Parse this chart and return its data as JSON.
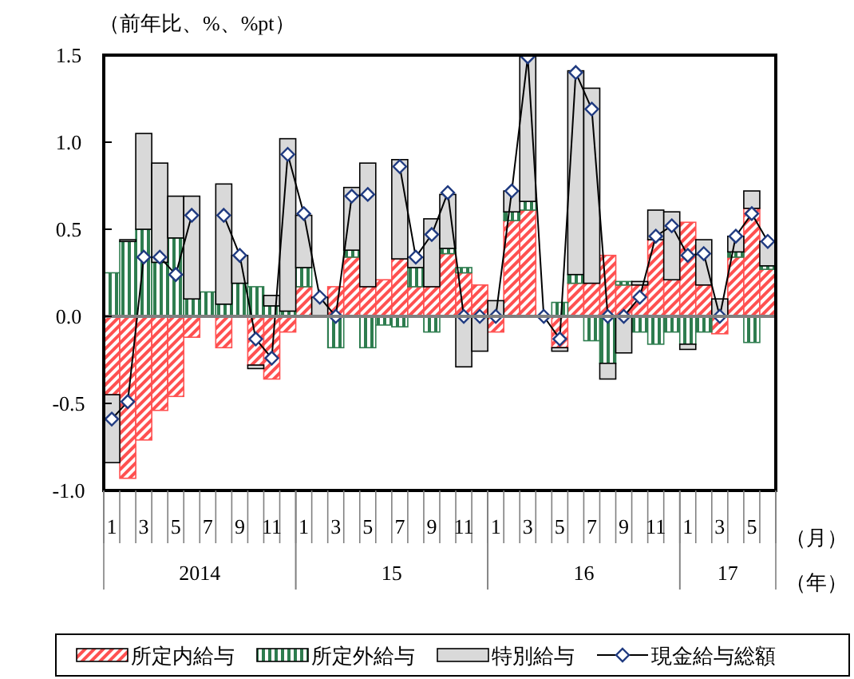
{
  "chart_data": {
    "type": "bar",
    "stacked": true,
    "ylabel": "（前年比、%、%pt）",
    "xlabel": "（月）",
    "annotations": [
      "2014",
      "15",
      "16",
      "17",
      "（年）"
    ],
    "xlim": [
      "2014-01",
      "2017-06"
    ],
    "x": [
      "2014-01",
      "2014-02",
      "2014-03",
      "2014-04",
      "2014-05",
      "2014-06",
      "2014-07",
      "2014-08",
      "2014-09",
      "2014-10",
      "2014-11",
      "2014-12",
      "2015-01",
      "2015-02",
      "2015-03",
      "2015-04",
      "2015-05",
      "2015-06",
      "2015-07",
      "2015-08",
      "2015-09",
      "2015-10",
      "2015-11",
      "2015-12",
      "2016-01",
      "2016-02",
      "2016-03",
      "2016-04",
      "2016-05",
      "2016-06",
      "2016-07",
      "2016-08",
      "2016-09",
      "2016-10",
      "2016-11",
      "2016-12",
      "2017-01",
      "2017-02",
      "2017-03",
      "2017-04",
      "2017-05",
      "2017-06"
    ],
    "xticks": [
      {
        "value": "2014-01",
        "label": "1"
      },
      {
        "value": "2014-03",
        "label": "3"
      },
      {
        "value": "2014-05",
        "label": "5"
      },
      {
        "value": "2014-07",
        "label": "7"
      },
      {
        "value": "2014-09",
        "label": "9"
      },
      {
        "value": "2014-11",
        "label": "11"
      },
      {
        "value": "2015-01",
        "label": "1"
      },
      {
        "value": "2015-03",
        "label": "3"
      },
      {
        "value": "2015-05",
        "label": "5"
      },
      {
        "value": "2015-07",
        "label": "7"
      },
      {
        "value": "2015-09",
        "label": "9"
      },
      {
        "value": "2015-11",
        "label": "11"
      },
      {
        "value": "2016-01",
        "label": "1"
      },
      {
        "value": "2016-03",
        "label": "3"
      },
      {
        "value": "2016-05",
        "label": "5"
      },
      {
        "value": "2016-07",
        "label": "7"
      },
      {
        "value": "2016-09",
        "label": "9"
      },
      {
        "value": "2016-11",
        "label": "11"
      },
      {
        "value": "2017-01",
        "label": "1"
      },
      {
        "value": "2017-03",
        "label": "3"
      },
      {
        "value": "2017-05",
        "label": "5"
      }
    ],
    "ylim": [
      -1.0,
      1.5
    ],
    "yticks": [
      {
        "value": -1.0,
        "label": "-1.0"
      },
      {
        "value": -0.5,
        "label": "-0.5"
      },
      {
        "value": 0,
        "label": "0.0"
      },
      {
        "value": 0.5,
        "label": "0.5"
      },
      {
        "value": 1.0,
        "label": "1.0"
      },
      {
        "value": 1.5,
        "label": "1.5"
      }
    ],
    "legend": "bottom",
    "series": [
      {
        "name": "所定内給与",
        "color": "#ff5050",
        "values": [
          -0.45,
          -0.93,
          -0.71,
          -0.54,
          -0.46,
          -0.12,
          0,
          -0.18,
          0,
          -0.28,
          -0.36,
          -0.09,
          0.17,
          0,
          0.17,
          0.34,
          0.17,
          0.21,
          0.33,
          0.17,
          0.17,
          0.36,
          0.25,
          0.18,
          -0.09,
          0.55,
          0.61,
          0,
          -0.18,
          0.19,
          0.19,
          0.35,
          0.18,
          0.18,
          0.44,
          0.21,
          0.54,
          0.18,
          -0.1,
          0.34,
          0.62,
          0.27
        ]
      },
      {
        "name": "所定外給与",
        "color": "#2e7d4f",
        "values": [
          0.25,
          0.43,
          0.5,
          0.31,
          0.45,
          0.1,
          0.14,
          0.07,
          0.19,
          0.17,
          0.06,
          0.03,
          0.11,
          0,
          -0.18,
          0.04,
          -0.18,
          -0.05,
          -0.06,
          0.11,
          -0.09,
          0.03,
          0.03,
          0,
          0,
          0.05,
          0.05,
          0,
          0.08,
          0.05,
          -0.14,
          -0.27,
          0.02,
          -0.09,
          -0.16,
          -0.09,
          -0.16,
          -0.09,
          0,
          0.03,
          -0.15,
          0.02
        ]
      },
      {
        "name": "特別給与",
        "color": "#d9d9d9",
        "values": [
          -0.39,
          0.01,
          0.55,
          0.57,
          0.24,
          0.59,
          null,
          0.69,
          0.16,
          -0.02,
          0.06,
          0.99,
          0.3,
          0.11,
          0,
          0.36,
          0.71,
          null,
          0.57,
          0.06,
          0.39,
          0.31,
          -0.29,
          -0.2,
          0.09,
          0.12,
          0.84,
          0,
          -0.02,
          1.17,
          1.12,
          -0.09,
          -0.21,
          0.02,
          0.17,
          0.39,
          -0.03,
          0.26,
          0.1,
          0.09,
          0.1,
          0.14
        ]
      },
      {
        "name": "現金給与総額",
        "type": "line",
        "color": "#000000",
        "marker": "diamond",
        "line_style": "solid",
        "values": [
          -0.59,
          -0.49,
          0.34,
          0.34,
          0.24,
          0.58,
          null,
          0.58,
          0.35,
          -0.13,
          -0.24,
          0.93,
          0.59,
          0.11,
          0.0,
          0.69,
          0.7,
          null,
          0.86,
          0.34,
          0.47,
          0.71,
          0.0,
          0.0,
          0.0,
          0.72,
          1.49,
          0.0,
          -0.13,
          1.4,
          1.19,
          0.0,
          0.0,
          0.11,
          0.46,
          0.52,
          0.35,
          0.36,
          0.0,
          0.46,
          0.59,
          0.43
        ]
      }
    ]
  }
}
